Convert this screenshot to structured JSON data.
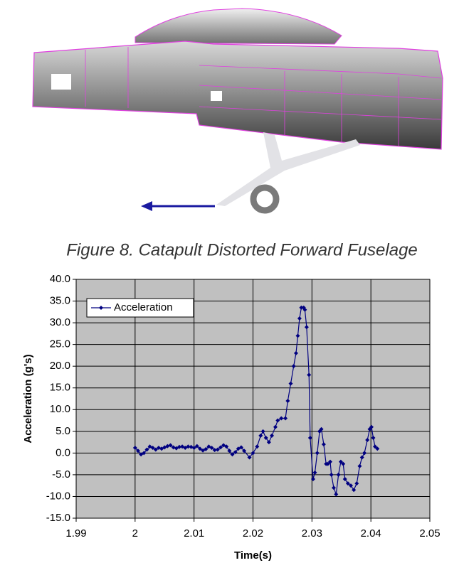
{
  "figure": {
    "caption": "Figure 8. Catapult Distorted Forward Fuselage"
  },
  "chart_data": {
    "type": "line",
    "x_label": "Time(s)",
    "y_label": "Acceleration (g's)",
    "x": [
      2.0,
      2.0005,
      2.001,
      2.0015,
      2.002,
      2.0025,
      2.003,
      2.0035,
      2.004,
      2.0045,
      2.005,
      2.0055,
      2.006,
      2.0065,
      2.007,
      2.0075,
      2.008,
      2.0085,
      2.009,
      2.0095,
      2.01,
      2.0105,
      2.011,
      2.0115,
      2.012,
      2.0125,
      2.013,
      2.0135,
      2.014,
      2.0145,
      2.015,
      2.0155,
      2.016,
      2.0165,
      2.017,
      2.0175,
      2.018,
      2.0185,
      2.0194,
      2.02,
      2.0207,
      2.0213,
      2.0217,
      2.0222,
      2.0227,
      2.0232,
      2.0238,
      2.0242,
      2.0248,
      2.0255,
      2.0259,
      2.0264,
      2.0269,
      2.0273,
      2.0276,
      2.0279,
      2.0282,
      2.0286,
      2.0288,
      2.0291,
      2.0295,
      2.0297,
      2.0302,
      2.0305,
      2.0309,
      2.0313,
      2.0316,
      2.032,
      2.0324,
      2.0327,
      2.0331,
      2.0333,
      2.0337,
      2.0341,
      2.0345,
      2.0349,
      2.0353,
      2.0356,
      2.0361,
      2.0366,
      2.0371,
      2.0376,
      2.0381,
      2.0385,
      2.0389,
      2.0394,
      2.0398,
      2.0401,
      2.0404,
      2.0407,
      2.0411
    ],
    "series": [
      {
        "name": "Acceleration",
        "color": "#000080",
        "values": [
          1.2,
          0.5,
          -0.3,
          0,
          0.8,
          1.5,
          1.2,
          0.8,
          1.2,
          1.0,
          1.3,
          1.6,
          1.8,
          1.3,
          1.1,
          1.4,
          1.5,
          1.2,
          1.5,
          1.4,
          1.2,
          1.6,
          1.0,
          0.6,
          0.9,
          1.5,
          1.2,
          0.7,
          0.8,
          1.3,
          1.8,
          1.5,
          0.5,
          -0.3,
          0.2,
          1.0,
          1.3,
          0.5,
          -1,
          0,
          1.5,
          4,
          5,
          3.5,
          2.5,
          4,
          6,
          7.5,
          8,
          8,
          12,
          16,
          20,
          23,
          27,
          31,
          33.5,
          33.5,
          33,
          29,
          18,
          3.5,
          -6,
          -4.5,
          0,
          5,
          5.5,
          2,
          -2.5,
          -2.5,
          -2,
          -5,
          -8,
          -9.5,
          -5,
          -2,
          -2.5,
          -6,
          -7,
          -7.5,
          -8.5,
          -7,
          -3,
          -1,
          0,
          3,
          5.5,
          6,
          3.5,
          1.5,
          1
        ]
      }
    ],
    "xlim": [
      1.99,
      2.05
    ],
    "xticks": [
      1.99,
      2,
      2.01,
      2.02,
      2.03,
      2.04,
      2.05
    ],
    "ylim": [
      -15,
      40
    ],
    "yticks": [
      {
        "value": -15,
        "label": "-15.0"
      },
      {
        "value": -10,
        "label": "-10.0"
      },
      {
        "value": -5,
        "label": "-5.0"
      },
      {
        "value": 0,
        "label": "0.0"
      },
      {
        "value": 5,
        "label": "5.0"
      },
      {
        "value": 10,
        "label": "10.0"
      },
      {
        "value": 15,
        "label": "15.0"
      },
      {
        "value": 20,
        "label": "20.0"
      },
      {
        "value": 25,
        "label": "25.0"
      },
      {
        "value": 30,
        "label": "30.0"
      },
      {
        "value": 35,
        "label": "35.0"
      },
      {
        "value": 40,
        "label": "40.0"
      }
    ],
    "grid": true,
    "legend": "upper-left"
  }
}
